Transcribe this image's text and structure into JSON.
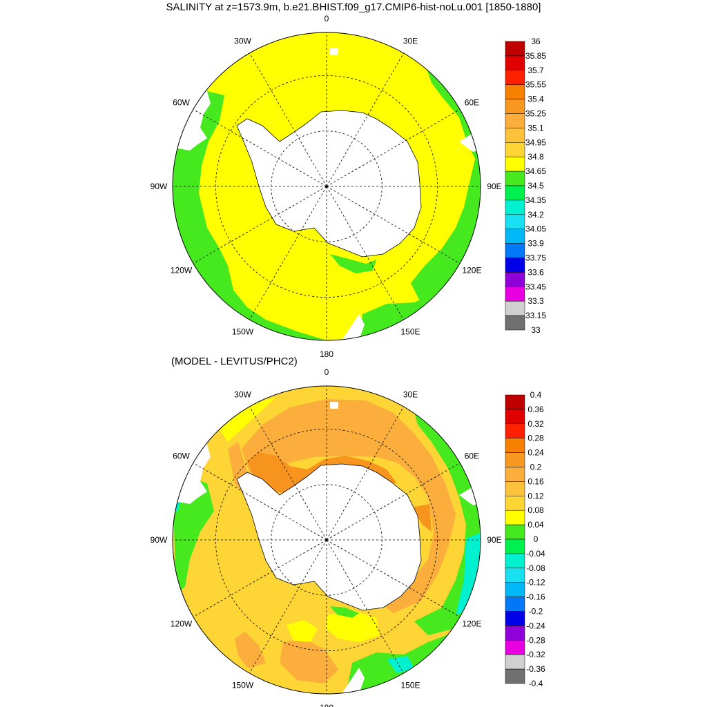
{
  "title": "SALINITY at z=1573.9m, b.e21.BHIST.f09_g17.CMIP6-hist-noLu.001 [1850-1880]",
  "subtitle": "(MODEL - LEVITUS/PHC2)",
  "longitude_labels": [
    "0",
    "30E",
    "60E",
    "90E",
    "120E",
    "150E",
    "180",
    "150W",
    "120W",
    "90W",
    "60W",
    "30W"
  ],
  "colors": {
    "land": "#ffffff",
    "top_field": "#ffff00",
    "top_edge": "#46e81e",
    "bottom_field": "#fdd535",
    "bottom_high": "#fbae3c",
    "bottom_peak": "#f7941d",
    "bottom_low": "#46e81e",
    "bottom_lowest": "#00f0d0"
  },
  "colorbar_top": {
    "labels": [
      "36",
      "35.85",
      "35.7",
      "35.55",
      "35.4",
      "35.25",
      "35.1",
      "34.95",
      "34.8",
      "34.65",
      "34.5",
      "34.35",
      "34.2",
      "34.05",
      "33.9",
      "33.75",
      "33.6",
      "33.45",
      "33.3",
      "33.15",
      "33"
    ],
    "colors": [
      "#c00000",
      "#e00000",
      "#ff2000",
      "#f88000",
      "#f89820",
      "#fbae3c",
      "#fcc23c",
      "#fdd535",
      "#ffff00",
      "#46e81e",
      "#00f050",
      "#00f0d0",
      "#18e0f0",
      "#00b8f8",
      "#0078f8",
      "#0000e8",
      "#9000d8",
      "#e800e0",
      "#d0d0d0",
      "#707070"
    ]
  },
  "colorbar_bottom": {
    "labels": [
      "0.4",
      "0.36",
      "0.32",
      "0.28",
      "0.24",
      "0.2",
      "0.16",
      "0.12",
      "0.08",
      "0.04",
      "0",
      "-0.04",
      "-0.08",
      "-0.12",
      "-0.16",
      "-0.2",
      "-0.24",
      "-0.28",
      "-0.32",
      "-0.36",
      "-0.4"
    ],
    "colors": [
      "#c00000",
      "#e00000",
      "#ff2000",
      "#f88000",
      "#f89820",
      "#fbae3c",
      "#fcc23c",
      "#fdd535",
      "#ffff00",
      "#46e81e",
      "#00f050",
      "#00f0d0",
      "#18e0f0",
      "#00b8f8",
      "#0078f8",
      "#0000e8",
      "#9000d8",
      "#e800e0",
      "#d0d0d0",
      "#707070"
    ]
  }
}
